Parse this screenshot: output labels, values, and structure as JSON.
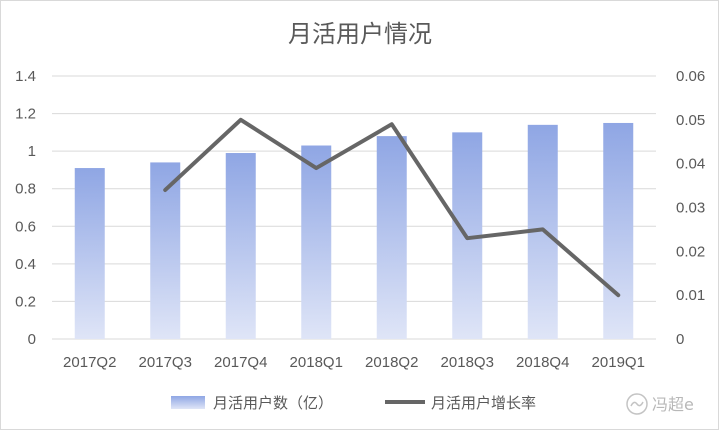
{
  "chart_data": {
    "type": "bar+line",
    "title": "月活用户情况",
    "categories": [
      "2017Q2",
      "2017Q3",
      "2017Q4",
      "2018Q1",
      "2018Q2",
      "2018Q3",
      "2018Q4",
      "2019Q1"
    ],
    "series": [
      {
        "name": "月活用户数（亿）",
        "type": "bar",
        "axis": "left",
        "values": [
          0.91,
          0.94,
          0.99,
          1.03,
          1.08,
          1.1,
          1.14,
          1.15
        ]
      },
      {
        "name": "月活用户增长率",
        "type": "line",
        "axis": "right",
        "values": [
          null,
          0.034,
          0.05,
          0.039,
          0.049,
          0.023,
          0.025,
          0.01
        ]
      }
    ],
    "y_left": {
      "min": 0,
      "max": 1.4,
      "ticks": [
        "0",
        "0.2",
        "0.4",
        "0.6",
        "0.8",
        "1",
        "1.2",
        "1.4"
      ]
    },
    "y_right": {
      "min": 0,
      "max": 0.06,
      "ticks": [
        "0",
        "0.01",
        "0.02",
        "0.03",
        "0.04",
        "0.05",
        "0.06"
      ]
    },
    "grid": true,
    "legend_position": "bottom",
    "colors": {
      "bar_top": "#8fa6e4",
      "bar_bottom": "#dfe5f7",
      "line": "#666666",
      "grid": "#d9d9d9",
      "text": "#595959"
    }
  },
  "watermark": {
    "text": "冯超e"
  }
}
